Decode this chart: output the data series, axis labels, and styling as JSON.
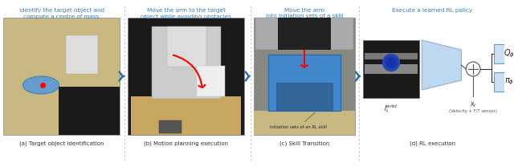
{
  "title_color": "#3a7abf",
  "caption_color": "#333333",
  "arrow_color": "#2b6cb0",
  "bg_color": "#ffffff",
  "panel_titles": [
    "Identify the target object and\ncompute a centre of mass",
    "Move the arm to the target\nobject while avoiding obstacles",
    "Move the arm\ninto initiation sets of a skill",
    "Execute a learned RL policy"
  ],
  "panel_captions": [
    "(a) Target object identification",
    "(b) Motion planning execution",
    "(c) Skill Transition",
    "(d) RL execution"
  ],
  "dpi": 100,
  "fig_w": 6.4,
  "fig_h": 2.08
}
